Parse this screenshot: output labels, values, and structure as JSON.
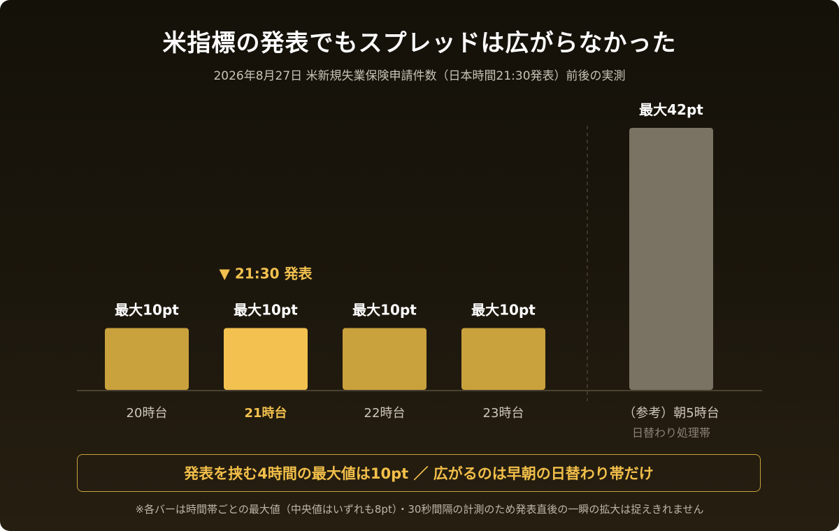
{
  "title": "米指標の発表でもスプレッドは広がらなかった",
  "subtitle": "2026年8月27日 米新規失業保険申請件数（日本時間21:30発表）前後の実測",
  "chart_data": {
    "type": "bar",
    "unit": "pt",
    "categories": [
      "20時台",
      "21時台",
      "22時台",
      "23時台",
      "（参考）朝5時台"
    ],
    "values": [
      10,
      10,
      10,
      10,
      42
    ],
    "value_labels": [
      "最大10pt",
      "最大10pt",
      "最大10pt",
      "最大10pt",
      "最大42pt"
    ],
    "category_sublabels": [
      "",
      "",
      "",
      "",
      "日替わり処理帯"
    ],
    "highlight_index": 1,
    "highlight_annotation": "▼ 21:30 発表",
    "reference_separator_before_index": 4,
    "colors": {
      "bar": "#c9a13d",
      "bar_highlight": "#f2c14f",
      "bar_reference": "#7a7262",
      "value_label": "#ffffff",
      "annotation": "#f2c14f",
      "tick": "#cdc7b9",
      "tick_highlight": "#f2c14f",
      "sublabel": "#8a8375",
      "axis": "#4a4232",
      "separator": "#4a4232"
    }
  },
  "summary": "発表を挟む4時間の最大値は10pt ／ 広がるのは早朝の日替わり帯だけ",
  "footnote": "※各バーは時間帯ごとの最大値（中央値はいずれも8pt）・30秒間隔の計測のため発表直後の一瞬の拡大は捉えきれません"
}
